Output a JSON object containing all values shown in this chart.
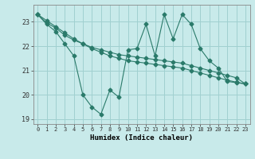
{
  "title": "",
  "xlabel": "Humidex (Indice chaleur)",
  "ylabel": "",
  "background_color": "#c8eaea",
  "grid_color": "#a0d0d0",
  "line_color": "#2a7a6a",
  "x": [
    0,
    1,
    2,
    3,
    4,
    5,
    6,
    7,
    8,
    9,
    10,
    11,
    12,
    13,
    14,
    15,
    16,
    17,
    18,
    19,
    20,
    21,
    22,
    23
  ],
  "line1": [
    23.3,
    22.9,
    22.6,
    22.1,
    21.6,
    20.0,
    19.5,
    19.2,
    20.2,
    19.9,
    21.85,
    21.9,
    22.9,
    21.6,
    23.3,
    22.3,
    23.3,
    22.9,
    21.9,
    21.4,
    21.1,
    20.55,
    20.5,
    20.45
  ],
  "line2": [
    23.3,
    23.05,
    22.8,
    22.55,
    22.3,
    22.1,
    21.9,
    21.75,
    21.6,
    21.5,
    21.4,
    21.35,
    21.3,
    21.25,
    21.2,
    21.15,
    21.1,
    21.0,
    20.9,
    20.8,
    20.7,
    20.6,
    20.52,
    20.45
  ],
  "line3": [
    23.3,
    22.95,
    22.75,
    22.45,
    22.25,
    22.1,
    21.95,
    21.85,
    21.75,
    21.65,
    21.6,
    21.55,
    21.5,
    21.45,
    21.4,
    21.35,
    21.3,
    21.2,
    21.1,
    21.0,
    20.9,
    20.8,
    20.7,
    20.45
  ],
  "ylim": [
    18.8,
    23.7
  ],
  "yticks": [
    19,
    20,
    21,
    22,
    23
  ],
  "xticks": [
    0,
    1,
    2,
    3,
    4,
    5,
    6,
    7,
    8,
    9,
    10,
    11,
    12,
    13,
    14,
    15,
    16,
    17,
    18,
    19,
    20,
    21,
    22,
    23
  ]
}
